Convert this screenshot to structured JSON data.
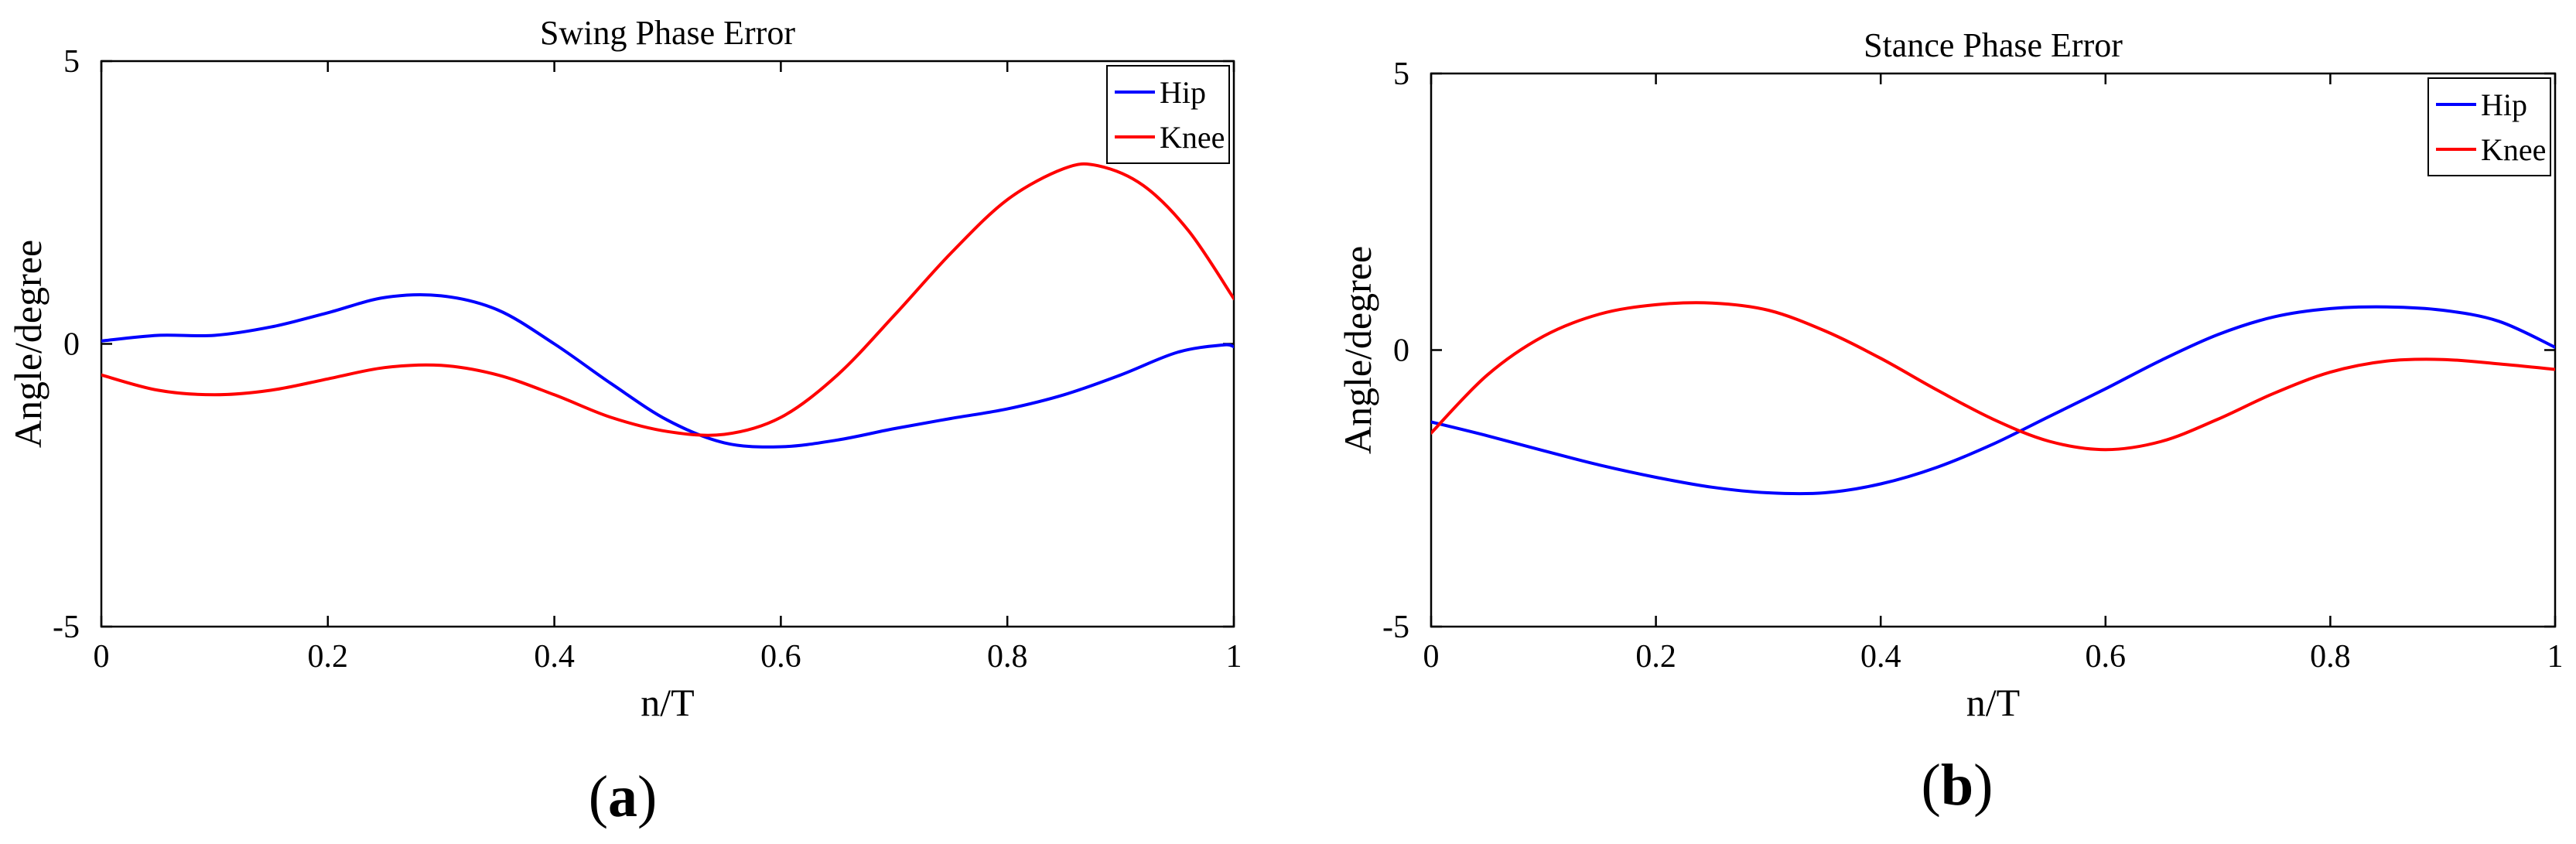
{
  "figure": {
    "captions": [
      "(a)",
      "(b)"
    ],
    "caption_letters": [
      "a",
      "b"
    ]
  },
  "chart_data": [
    {
      "type": "line",
      "title": "Swing Phase Error",
      "xlabel": "n/T",
      "ylabel": "Angle/degree",
      "xlim": [
        0,
        1
      ],
      "ylim": [
        -5,
        5
      ],
      "xticks": [
        "0",
        "0.2",
        "0.4",
        "0.6",
        "0.8",
        "1"
      ],
      "yticks": [
        "-5",
        "0",
        "5"
      ],
      "legend_position": "top-right",
      "grid": false,
      "series": [
        {
          "name": "Hip",
          "color": "#0000ff",
          "x": [
            0,
            0.05,
            0.1,
            0.15,
            0.2,
            0.25,
            0.3,
            0.35,
            0.4,
            0.45,
            0.5,
            0.55,
            0.6,
            0.65,
            0.7,
            0.75,
            0.8,
            0.85,
            0.9,
            0.95,
            0.99,
            1.0
          ],
          "y": [
            0.05,
            0.15,
            0.15,
            0.3,
            0.55,
            0.82,
            0.85,
            0.6,
            0.0,
            -0.7,
            -1.35,
            -1.75,
            -1.82,
            -1.7,
            -1.5,
            -1.32,
            -1.15,
            -0.9,
            -0.55,
            -0.15,
            -0.02,
            -0.05
          ]
        },
        {
          "name": "Knee",
          "color": "#ff0000",
          "x": [
            0,
            0.05,
            0.1,
            0.15,
            0.2,
            0.25,
            0.3,
            0.35,
            0.4,
            0.45,
            0.5,
            0.55,
            0.6,
            0.65,
            0.7,
            0.75,
            0.8,
            0.85,
            0.88,
            0.92,
            0.96,
            1.0
          ],
          "y": [
            -0.55,
            -0.82,
            -0.9,
            -0.82,
            -0.62,
            -0.42,
            -0.38,
            -0.55,
            -0.9,
            -1.3,
            -1.55,
            -1.6,
            -1.3,
            -0.55,
            0.5,
            1.6,
            2.55,
            3.1,
            3.15,
            2.8,
            2.0,
            0.8
          ]
        }
      ]
    },
    {
      "type": "line",
      "title": "Stance Phase Error",
      "xlabel": "n/T",
      "ylabel": "Angle/degree",
      "xlim": [
        0,
        1
      ],
      "ylim": [
        -5,
        5
      ],
      "xticks": [
        "0",
        "0.2",
        "0.4",
        "0.6",
        "0.8",
        "1"
      ],
      "yticks": [
        "-5",
        "0",
        "5"
      ],
      "legend_position": "top-right",
      "grid": false,
      "series": [
        {
          "name": "Hip",
          "color": "#0000ff",
          "x": [
            0,
            0.05,
            0.1,
            0.15,
            0.2,
            0.25,
            0.3,
            0.35,
            0.4,
            0.45,
            0.5,
            0.55,
            0.6,
            0.65,
            0.7,
            0.75,
            0.8,
            0.85,
            0.9,
            0.95,
            1.0
          ],
          "y": [
            -1.3,
            -1.55,
            -1.82,
            -2.08,
            -2.3,
            -2.48,
            -2.58,
            -2.58,
            -2.42,
            -2.12,
            -1.7,
            -1.2,
            -0.7,
            -0.18,
            0.28,
            0.6,
            0.75,
            0.78,
            0.72,
            0.52,
            0.05
          ]
        },
        {
          "name": "Knee",
          "color": "#ff0000",
          "x": [
            0,
            0.05,
            0.1,
            0.15,
            0.2,
            0.25,
            0.3,
            0.35,
            0.4,
            0.45,
            0.5,
            0.55,
            0.6,
            0.65,
            0.7,
            0.75,
            0.8,
            0.85,
            0.9,
            0.95,
            1.0
          ],
          "y": [
            -1.5,
            -0.45,
            0.25,
            0.65,
            0.82,
            0.85,
            0.72,
            0.35,
            -0.15,
            -0.72,
            -1.25,
            -1.65,
            -1.8,
            -1.65,
            -1.25,
            -0.78,
            -0.4,
            -0.2,
            -0.17,
            -0.25,
            -0.35
          ]
        }
      ]
    }
  ]
}
